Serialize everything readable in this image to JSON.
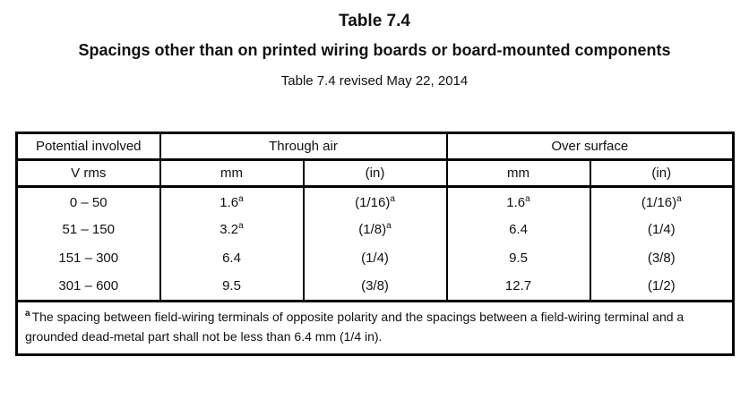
{
  "page": {
    "title": "Table 7.4",
    "subtitle": "Spacings other than on printed wiring boards or board-mounted components",
    "revision_note": "Table 7.4 revised May 22, 2014"
  },
  "colors": {
    "background": "#ffffff",
    "text": "#111111",
    "border": "#000000"
  },
  "spacing_table": {
    "header_row1": {
      "potential": "Potential involved",
      "through_air": "Through air",
      "over_surface": "Over surface"
    },
    "header_row2": {
      "potential_unit": "V rms",
      "ta_mm": "mm",
      "ta_in": "(in)",
      "os_mm": "mm",
      "os_in": "(in)"
    },
    "rows": [
      {
        "range": "0 – 50",
        "ta_mm": {
          "v": "1.6",
          "sup": "a"
        },
        "ta_in": {
          "v": "(1/16)",
          "sup": "a"
        },
        "os_mm": {
          "v": "1.6",
          "sup": "a"
        },
        "os_in": {
          "v": "(1/16)",
          "sup": "a"
        }
      },
      {
        "range": "51 – 150",
        "ta_mm": {
          "v": "3.2",
          "sup": "a"
        },
        "ta_in": {
          "v": "(1/8)",
          "sup": "a"
        },
        "os_mm": {
          "v": "6.4"
        },
        "os_in": {
          "v": "(1/4)"
        }
      },
      {
        "range": "151 – 300",
        "ta_mm": {
          "v": "6.4"
        },
        "ta_in": {
          "v": "(1/4)"
        },
        "os_mm": {
          "v": "9.5"
        },
        "os_in": {
          "v": "(3/8)"
        }
      },
      {
        "range": "301 – 600",
        "ta_mm": {
          "v": "9.5"
        },
        "ta_in": {
          "v": "(3/8)"
        },
        "os_mm": {
          "v": "12.7"
        },
        "os_in": {
          "v": "(1/2)"
        }
      }
    ],
    "footnote": {
      "marker": "a",
      "text": "The spacing between field-wiring terminals of opposite polarity and the spacings between a field-wiring terminal and a grounded dead-metal part shall not be less than 6.4 mm (1/4 in)."
    }
  }
}
